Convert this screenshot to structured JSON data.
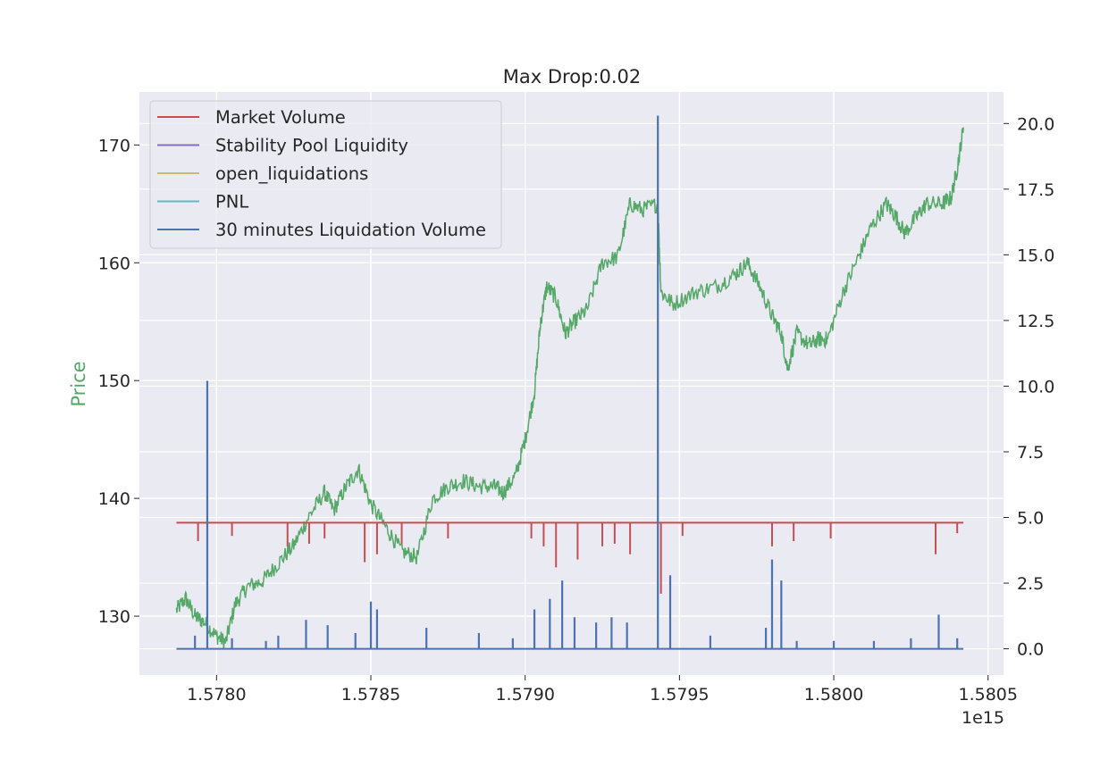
{
  "chart_data": {
    "type": "line",
    "title": "Max Drop:0.02",
    "x_axis": {
      "range": [
        1577750000000000.0,
        1580550000000000.0
      ],
      "ticks": [
        1578000000000000.0,
        1578500000000000.0,
        1579000000000000.0,
        1579500000000000.0,
        1580000000000000.0,
        1580500000000000.0
      ],
      "tick_labels": [
        "1.5780",
        "1.5785",
        "1.5790",
        "1.5795",
        "1.5800",
        "1.5805"
      ],
      "offset_label": "1e15"
    },
    "y_left": {
      "label": "Price",
      "label_color": "#55a868",
      "range": [
        125.0,
        174.5
      ],
      "ticks": [
        130,
        140,
        150,
        160,
        170
      ],
      "tick_labels": [
        "130",
        "140",
        "150",
        "160",
        "170"
      ]
    },
    "y_right": {
      "range": [
        -1.0,
        21.2
      ],
      "ticks": [
        0.0,
        2.5,
        5.0,
        7.5,
        10.0,
        12.5,
        15.0,
        17.5,
        20.0
      ],
      "tick_labels": [
        "0.0",
        "2.5",
        "5.0",
        "7.5",
        "10.0",
        "12.5",
        "15.0",
        "17.5",
        "20.0"
      ]
    },
    "grid": true,
    "legend": {
      "position": "upper-left",
      "entries": [
        {
          "label": "Market Volume",
          "color": "#c44e52"
        },
        {
          "label": "Stability Pool Liquidity",
          "color": "#8172b3"
        },
        {
          "label": "open_liquidations",
          "color": "#ccb974"
        },
        {
          "label": "PNL",
          "color": "#64b5cd"
        },
        {
          "label": "30 minutes Liquidation Volume",
          "color": "#4c72b0"
        }
      ]
    },
    "series": [
      {
        "name": "Price",
        "axis": "left",
        "color": "#55a868",
        "points": [
          [
            1577870000000000.0,
            130.5
          ],
          [
            1577900000000000.0,
            131.5
          ],
          [
            1577930000000000.0,
            130.0
          ],
          [
            1577960000000000.0,
            129.5
          ],
          [
            1578000000000000.0,
            128.3
          ],
          [
            1578030000000000.0,
            127.8
          ],
          [
            1578060000000000.0,
            131.0
          ],
          [
            1578100000000000.0,
            132.5
          ],
          [
            1578150000000000.0,
            133.0
          ],
          [
            1578200000000000.0,
            134.5
          ],
          [
            1578250000000000.0,
            136.0
          ],
          [
            1578300000000000.0,
            138.5
          ],
          [
            1578350000000000.0,
            140.5
          ],
          [
            1578380000000000.0,
            139.0
          ],
          [
            1578420000000000.0,
            141.0
          ],
          [
            1578460000000000.0,
            142.5
          ],
          [
            1578500000000000.0,
            139.5
          ],
          [
            1578550000000000.0,
            137.5
          ],
          [
            1578600000000000.0,
            135.5
          ],
          [
            1578650000000000.0,
            135.0
          ],
          [
            1578700000000000.0,
            140.0
          ],
          [
            1578750000000000.0,
            141.0
          ],
          [
            1578800000000000.0,
            141.5
          ],
          [
            1578850000000000.0,
            141.0
          ],
          [
            1578900000000000.0,
            141.0
          ],
          [
            1578930000000000.0,
            140.5
          ],
          [
            1578970000000000.0,
            142.0
          ],
          [
            1579000000000000.0,
            145.0
          ],
          [
            1579030000000000.0,
            149.0
          ],
          [
            1579050000000000.0,
            155.0
          ],
          [
            1579070000000000.0,
            158.0
          ],
          [
            1579100000000000.0,
            157.0
          ],
          [
            1579130000000000.0,
            154.0
          ],
          [
            1579160000000000.0,
            155.0
          ],
          [
            1579200000000000.0,
            156.0
          ],
          [
            1579250000000000.0,
            160.0
          ],
          [
            1579300000000000.0,
            160.5
          ],
          [
            1579340000000000.0,
            165.0
          ],
          [
            1579380000000000.0,
            164.5
          ],
          [
            1579430000000000.0,
            165.0
          ],
          [
            1579440000000000.0,
            157.5
          ],
          [
            1579480000000000.0,
            156.5
          ],
          [
            1579550000000000.0,
            157.5
          ],
          [
            1579620000000000.0,
            158.0
          ],
          [
            1579680000000000.0,
            159.0
          ],
          [
            1579720000000000.0,
            160.0
          ],
          [
            1579760000000000.0,
            158.0
          ],
          [
            1579800000000000.0,
            155.5
          ],
          [
            1579830000000000.0,
            154.0
          ],
          [
            1579850000000000.0,
            151.0
          ],
          [
            1579880000000000.0,
            154.0
          ],
          [
            1579920000000000.0,
            153.0
          ],
          [
            1579950000000000.0,
            153.5
          ],
          [
            1579980000000000.0,
            153.5
          ],
          [
            1580030000000000.0,
            157.5
          ],
          [
            1580080000000000.0,
            160.5
          ],
          [
            1580120000000000.0,
            163.0
          ],
          [
            1580170000000000.0,
            165.0
          ],
          [
            1580200000000000.0,
            164.0
          ],
          [
            1580230000000000.0,
            162.5
          ],
          [
            1580270000000000.0,
            164.0
          ],
          [
            1580300000000000.0,
            165.0
          ],
          [
            1580350000000000.0,
            165.0
          ],
          [
            1580380000000000.0,
            165.5
          ],
          [
            1580400000000000.0,
            168.0
          ],
          [
            1580420000000000.0,
            171.5
          ]
        ]
      },
      {
        "name": "Market Volume",
        "axis": "right",
        "color": "#c44e52",
        "baseline": 4.8,
        "x_range": [
          1577870000000000.0,
          1580420000000000.0
        ],
        "dips": [
          [
            1577940000000000.0,
            4.1
          ],
          [
            1578050000000000.0,
            4.3
          ],
          [
            1578230000000000.0,
            3.9
          ],
          [
            1578300000000000.0,
            4.0
          ],
          [
            1578350000000000.0,
            4.2
          ],
          [
            1578480000000000.0,
            3.3
          ],
          [
            1578520000000000.0,
            3.6
          ],
          [
            1578600000000000.0,
            4.0
          ],
          [
            1578750000000000.0,
            4.2
          ],
          [
            1579020000000000.0,
            4.2
          ],
          [
            1579060000000000.0,
            3.9
          ],
          [
            1579100000000000.0,
            3.1
          ],
          [
            1579170000000000.0,
            3.4
          ],
          [
            1579250000000000.0,
            3.9
          ],
          [
            1579290000000000.0,
            4.0
          ],
          [
            1579340000000000.0,
            3.6
          ],
          [
            1579440000000000.0,
            2.1
          ],
          [
            1579510000000000.0,
            4.3
          ],
          [
            1579800000000000.0,
            3.9
          ],
          [
            1579870000000000.0,
            4.1
          ],
          [
            1579990000000000.0,
            4.2
          ],
          [
            1580330000000000.0,
            3.6
          ],
          [
            1580400000000000.0,
            4.4
          ]
        ]
      },
      {
        "name": "30 minutes Liquidation Volume",
        "axis": "right",
        "color": "#4c72b0",
        "baseline": 0.0,
        "x_range": [
          1577870000000000.0,
          1580420000000000.0
        ],
        "spikes": [
          [
            1577930000000000.0,
            0.5
          ],
          [
            1577970000000000.0,
            10.2
          ],
          [
            1578050000000000.0,
            0.4
          ],
          [
            1578160000000000.0,
            0.3
          ],
          [
            1578200000000000.0,
            0.5
          ],
          [
            1578290000000000.0,
            1.1
          ],
          [
            1578360000000000.0,
            0.9
          ],
          [
            1578450000000000.0,
            0.6
          ],
          [
            1578500000000000.0,
            1.8
          ],
          [
            1578520000000000.0,
            1.5
          ],
          [
            1578680000000000.0,
            0.8
          ],
          [
            1578850000000000.0,
            0.6
          ],
          [
            1578960000000000.0,
            0.4
          ],
          [
            1579030000000000.0,
            1.5
          ],
          [
            1579080000000000.0,
            1.9
          ],
          [
            1579120000000000.0,
            2.6
          ],
          [
            1579160000000000.0,
            1.2
          ],
          [
            1579230000000000.0,
            1.0
          ],
          [
            1579280000000000.0,
            1.2
          ],
          [
            1579330000000000.0,
            1.0
          ],
          [
            1579430000000000.0,
            20.3
          ],
          [
            1579470000000000.0,
            2.8
          ],
          [
            1579600000000000.0,
            0.5
          ],
          [
            1579780000000000.0,
            0.8
          ],
          [
            1579800000000000.0,
            3.4
          ],
          [
            1579830000000000.0,
            2.6
          ],
          [
            1579880000000000.0,
            0.3
          ],
          [
            1580000000000000.0,
            0.3
          ],
          [
            1580130000000000.0,
            0.3
          ],
          [
            1580250000000000.0,
            0.4
          ],
          [
            1580340000000000.0,
            1.3
          ],
          [
            1580400000000000.0,
            0.4
          ]
        ]
      }
    ]
  }
}
